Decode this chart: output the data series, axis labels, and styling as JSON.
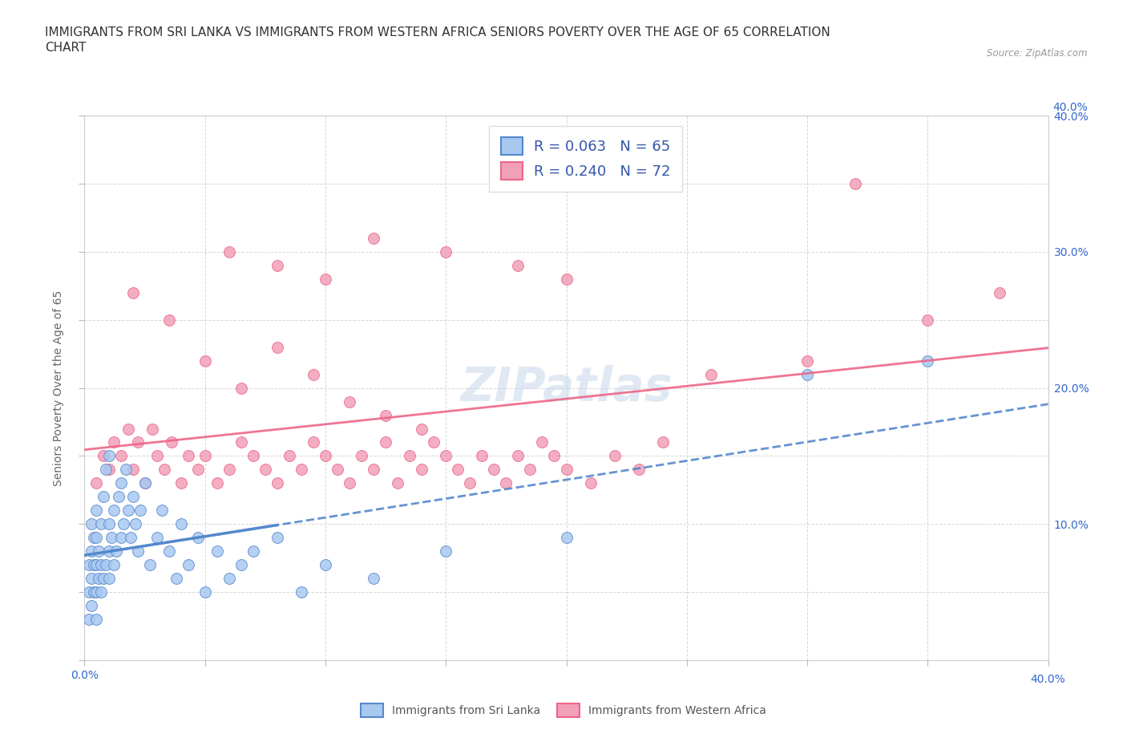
{
  "title": "IMMIGRANTS FROM SRI LANKA VS IMMIGRANTS FROM WESTERN AFRICA SENIORS POVERTY OVER THE AGE OF 65 CORRELATION\nCHART",
  "source": "Source: ZipAtlas.com",
  "ylabel": "Seniors Poverty Over the Age of 65",
  "xlim": [
    0.0,
    0.4
  ],
  "ylim": [
    0.0,
    0.4
  ],
  "xticks": [
    0.0,
    0.05,
    0.1,
    0.15,
    0.2,
    0.25,
    0.3,
    0.35,
    0.4
  ],
  "yticks": [
    0.0,
    0.05,
    0.1,
    0.15,
    0.2,
    0.25,
    0.3,
    0.35,
    0.4
  ],
  "ytick_labels_right": [
    "",
    "",
    "10.0%",
    "",
    "20.0%",
    "",
    "30.0%",
    "",
    "40.0%"
  ],
  "watermark": "ZIPatlas",
  "sri_lanka_color": "#a8c8f0",
  "western_africa_color": "#f0a0b8",
  "sri_lanka_line_color": "#5588cc",
  "western_africa_line_color": "#ee6688",
  "R_sri_lanka": 0.063,
  "N_sri_lanka": 65,
  "R_western_africa": 0.24,
  "N_western_africa": 72,
  "legend_color": "#3355aa",
  "sri_lanka_x": [
    0.002,
    0.002,
    0.002,
    0.003,
    0.003,
    0.003,
    0.003,
    0.004,
    0.004,
    0.004,
    0.005,
    0.005,
    0.005,
    0.005,
    0.005,
    0.006,
    0.006,
    0.007,
    0.007,
    0.007,
    0.008,
    0.008,
    0.009,
    0.009,
    0.01,
    0.01,
    0.01,
    0.01,
    0.011,
    0.012,
    0.012,
    0.013,
    0.014,
    0.015,
    0.015,
    0.016,
    0.017,
    0.018,
    0.019,
    0.02,
    0.021,
    0.022,
    0.023,
    0.025,
    0.027,
    0.03,
    0.032,
    0.035,
    0.038,
    0.04,
    0.043,
    0.047,
    0.05,
    0.055,
    0.06,
    0.065,
    0.07,
    0.08,
    0.09,
    0.1,
    0.12,
    0.15,
    0.2,
    0.3,
    0.35
  ],
  "sri_lanka_y": [
    0.03,
    0.05,
    0.07,
    0.04,
    0.06,
    0.08,
    0.1,
    0.05,
    0.07,
    0.09,
    0.03,
    0.05,
    0.07,
    0.09,
    0.11,
    0.06,
    0.08,
    0.05,
    0.07,
    0.1,
    0.06,
    0.12,
    0.07,
    0.14,
    0.06,
    0.08,
    0.1,
    0.15,
    0.09,
    0.07,
    0.11,
    0.08,
    0.12,
    0.09,
    0.13,
    0.1,
    0.14,
    0.11,
    0.09,
    0.12,
    0.1,
    0.08,
    0.11,
    0.13,
    0.07,
    0.09,
    0.11,
    0.08,
    0.06,
    0.1,
    0.07,
    0.09,
    0.05,
    0.08,
    0.06,
    0.07,
    0.08,
    0.09,
    0.05,
    0.07,
    0.06,
    0.08,
    0.09,
    0.21,
    0.22
  ],
  "western_africa_x": [
    0.005,
    0.008,
    0.01,
    0.012,
    0.015,
    0.018,
    0.02,
    0.022,
    0.025,
    0.028,
    0.03,
    0.033,
    0.036,
    0.04,
    0.043,
    0.047,
    0.05,
    0.055,
    0.06,
    0.065,
    0.07,
    0.075,
    0.08,
    0.085,
    0.09,
    0.095,
    0.1,
    0.105,
    0.11,
    0.115,
    0.12,
    0.125,
    0.13,
    0.135,
    0.14,
    0.145,
    0.15,
    0.155,
    0.16,
    0.165,
    0.17,
    0.175,
    0.18,
    0.185,
    0.19,
    0.195,
    0.2,
    0.21,
    0.22,
    0.23,
    0.24,
    0.02,
    0.035,
    0.05,
    0.065,
    0.08,
    0.095,
    0.11,
    0.125,
    0.14,
    0.06,
    0.08,
    0.1,
    0.12,
    0.15,
    0.18,
    0.2,
    0.26,
    0.3,
    0.32,
    0.35,
    0.38
  ],
  "western_africa_y": [
    0.13,
    0.15,
    0.14,
    0.16,
    0.15,
    0.17,
    0.14,
    0.16,
    0.13,
    0.17,
    0.15,
    0.14,
    0.16,
    0.13,
    0.15,
    0.14,
    0.15,
    0.13,
    0.14,
    0.16,
    0.15,
    0.14,
    0.13,
    0.15,
    0.14,
    0.16,
    0.15,
    0.14,
    0.13,
    0.15,
    0.14,
    0.16,
    0.13,
    0.15,
    0.14,
    0.16,
    0.15,
    0.14,
    0.13,
    0.15,
    0.14,
    0.13,
    0.15,
    0.14,
    0.16,
    0.15,
    0.14,
    0.13,
    0.15,
    0.14,
    0.16,
    0.27,
    0.25,
    0.22,
    0.2,
    0.23,
    0.21,
    0.19,
    0.18,
    0.17,
    0.3,
    0.29,
    0.28,
    0.31,
    0.3,
    0.29,
    0.28,
    0.21,
    0.22,
    0.35,
    0.25,
    0.27
  ],
  "background_color": "#ffffff",
  "grid_color": "#cccccc",
  "title_color": "#333333",
  "title_fontsize": 11
}
